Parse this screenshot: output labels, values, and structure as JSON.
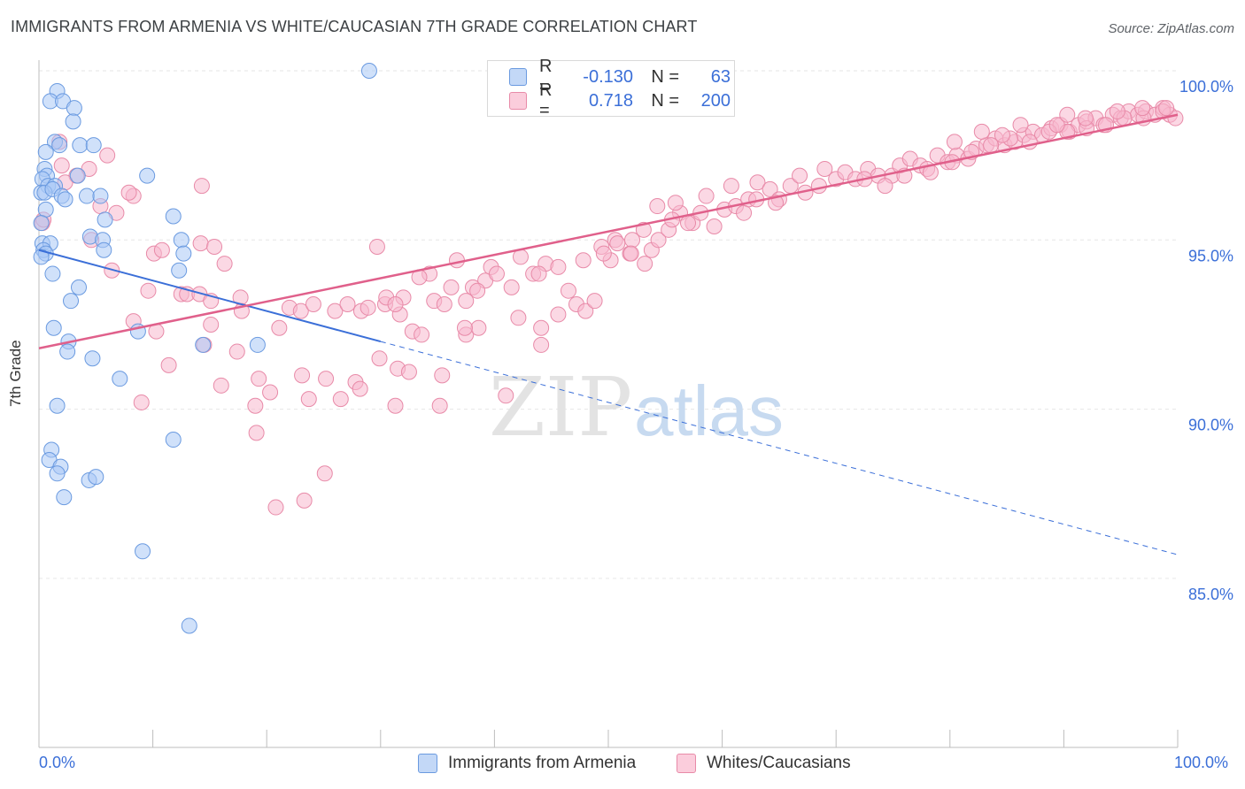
{
  "title": "IMMIGRANTS FROM ARMENIA VS WHITE/CAUCASIAN 7TH GRADE CORRELATION CHART",
  "source": "Source: ZipAtlas.com",
  "watermark": {
    "zip": "ZIP",
    "atlas": "atlas"
  },
  "legend": {
    "rows": [
      {
        "r_label": "R =",
        "r_value": "-0.130",
        "n_label": "N =",
        "n_value": "63",
        "color": "#a9c8f5"
      },
      {
        "r_label": "R =",
        "r_value": "0.718",
        "n_label": "N =",
        "n_value": "200",
        "color": "#f8b8cd"
      }
    ]
  },
  "chart_data": {
    "type": "scatter",
    "title": "IMMIGRANTS FROM ARMENIA VS WHITE/CAUCASIAN 7TH GRADE CORRELATION CHART",
    "ylabel": "7th Grade",
    "xlabel": "",
    "x_tick_labels": [
      "0.0%",
      "100.0%"
    ],
    "y_tick_labels": [
      "100.0%",
      "95.0%",
      "90.0%",
      "85.0%"
    ],
    "y_ticks": [
      100,
      95,
      90,
      85
    ],
    "xlim": [
      0,
      100
    ],
    "ylim": [
      80.5,
      100.8
    ],
    "grid": true,
    "legend_position": "top-center",
    "series": [
      {
        "name": "Immigrants from Armenia",
        "color": "#a9c8f5",
        "stroke": "#6a9ae0",
        "trend": {
          "x0": 0,
          "y0": 94.7,
          "x1": 30,
          "y1": 92.0,
          "dashed_to_x": 100,
          "dashed_to_y": 85.7,
          "color": "#3b6fd8"
        },
        "points": [
          [
            29.0,
            100.0
          ],
          [
            1.6,
            99.4
          ],
          [
            1.0,
            99.1
          ],
          [
            2.1,
            99.1
          ],
          [
            3.1,
            98.9
          ],
          [
            3.0,
            98.5
          ],
          [
            1.4,
            97.9
          ],
          [
            1.8,
            97.8
          ],
          [
            3.6,
            97.8
          ],
          [
            4.8,
            97.8
          ],
          [
            0.6,
            97.6
          ],
          [
            0.5,
            97.1
          ],
          [
            0.7,
            96.9
          ],
          [
            3.4,
            96.9
          ],
          [
            0.3,
            96.8
          ],
          [
            0.8,
            96.6
          ],
          [
            1.4,
            96.6
          ],
          [
            0.2,
            96.4
          ],
          [
            0.5,
            96.4
          ],
          [
            1.2,
            96.5
          ],
          [
            2.0,
            96.3
          ],
          [
            2.3,
            96.2
          ],
          [
            4.2,
            96.3
          ],
          [
            5.4,
            96.3
          ],
          [
            0.6,
            95.9
          ],
          [
            9.5,
            96.9
          ],
          [
            11.8,
            95.7
          ],
          [
            5.8,
            95.6
          ],
          [
            0.2,
            95.5
          ],
          [
            4.5,
            95.1
          ],
          [
            5.6,
            95.0
          ],
          [
            12.5,
            95.0
          ],
          [
            0.3,
            94.9
          ],
          [
            1.0,
            94.9
          ],
          [
            0.4,
            94.7
          ],
          [
            0.6,
            94.6
          ],
          [
            0.2,
            94.5
          ],
          [
            5.7,
            94.7
          ],
          [
            12.7,
            94.6
          ],
          [
            1.2,
            94.0
          ],
          [
            12.3,
            94.1
          ],
          [
            3.5,
            93.6
          ],
          [
            2.8,
            93.2
          ],
          [
            1.3,
            92.4
          ],
          [
            8.7,
            92.3
          ],
          [
            2.6,
            92.0
          ],
          [
            14.4,
            91.9
          ],
          [
            19.2,
            91.9
          ],
          [
            2.5,
            91.7
          ],
          [
            4.7,
            91.5
          ],
          [
            7.1,
            90.9
          ],
          [
            1.6,
            90.1
          ],
          [
            11.8,
            89.1
          ],
          [
            1.1,
            88.8
          ],
          [
            0.9,
            88.5
          ],
          [
            1.9,
            88.3
          ],
          [
            1.6,
            88.1
          ],
          [
            4.4,
            87.9
          ],
          [
            5.0,
            88.0
          ],
          [
            2.2,
            87.4
          ],
          [
            9.1,
            85.8
          ],
          [
            13.2,
            83.6
          ]
        ]
      },
      {
        "name": "Whites/Caucasians",
        "color": "#f8b8cd",
        "stroke": "#e88aa8",
        "trend": {
          "x0": 0,
          "y0": 91.8,
          "x1": 100,
          "y1": 98.7,
          "color": "#e0608b"
        },
        "points": [
          [
            1.8,
            97.9
          ],
          [
            2.0,
            97.2
          ],
          [
            6.0,
            97.5
          ],
          [
            4.4,
            97.1
          ],
          [
            3.3,
            96.9
          ],
          [
            2.3,
            96.7
          ],
          [
            8.3,
            96.3
          ],
          [
            7.9,
            96.4
          ],
          [
            14.3,
            96.6
          ],
          [
            5.4,
            96.0
          ],
          [
            6.8,
            95.8
          ],
          [
            0.3,
            95.5
          ],
          [
            0.4,
            95.6
          ],
          [
            4.6,
            95.0
          ],
          [
            10.1,
            94.6
          ],
          [
            10.8,
            94.7
          ],
          [
            14.2,
            94.9
          ],
          [
            15.4,
            94.8
          ],
          [
            16.3,
            94.3
          ],
          [
            6.4,
            94.1
          ],
          [
            9.6,
            93.5
          ],
          [
            12.5,
            93.4
          ],
          [
            13.0,
            93.4
          ],
          [
            14.1,
            93.4
          ],
          [
            15.1,
            93.2
          ],
          [
            17.7,
            93.3
          ],
          [
            15.1,
            92.5
          ],
          [
            8.3,
            92.6
          ],
          [
            10.3,
            92.3
          ],
          [
            17.8,
            92.9
          ],
          [
            14.5,
            91.9
          ],
          [
            17.4,
            91.7
          ],
          [
            11.4,
            91.3
          ],
          [
            16.0,
            90.7
          ],
          [
            19.3,
            90.9
          ],
          [
            20.3,
            90.5
          ],
          [
            19.0,
            90.1
          ],
          [
            9.0,
            90.2
          ],
          [
            19.1,
            89.3
          ],
          [
            21.1,
            92.4
          ],
          [
            22.0,
            93.0
          ],
          [
            23.0,
            92.9
          ],
          [
            24.1,
            93.1
          ],
          [
            26.0,
            92.9
          ],
          [
            27.1,
            93.1
          ],
          [
            28.3,
            92.9
          ],
          [
            28.9,
            93.0
          ],
          [
            30.4,
            93.1
          ],
          [
            30.5,
            93.3
          ],
          [
            31.7,
            92.8
          ],
          [
            32.0,
            93.3
          ],
          [
            31.3,
            93.1
          ],
          [
            23.1,
            91.0
          ],
          [
            25.2,
            90.9
          ],
          [
            26.5,
            90.3
          ],
          [
            23.7,
            90.3
          ],
          [
            27.8,
            90.8
          ],
          [
            28.2,
            90.6
          ],
          [
            20.8,
            87.1
          ],
          [
            23.3,
            87.3
          ],
          [
            25.1,
            88.1
          ],
          [
            29.9,
            91.5
          ],
          [
            31.5,
            91.2
          ],
          [
            32.8,
            92.3
          ],
          [
            33.6,
            92.2
          ],
          [
            32.5,
            91.1
          ],
          [
            35.4,
            91.0
          ],
          [
            31.3,
            90.1
          ],
          [
            35.2,
            90.1
          ],
          [
            37.5,
            92.2
          ],
          [
            38.6,
            92.4
          ],
          [
            37.5,
            93.2
          ],
          [
            38.1,
            93.6
          ],
          [
            39.2,
            93.8
          ],
          [
            39.7,
            94.2
          ],
          [
            40.2,
            94.0
          ],
          [
            42.3,
            94.5
          ],
          [
            41.5,
            93.6
          ],
          [
            43.4,
            94.0
          ],
          [
            44.5,
            94.3
          ],
          [
            43.9,
            94.0
          ],
          [
            45.6,
            94.2
          ],
          [
            46.5,
            93.5
          ],
          [
            47.2,
            93.1
          ],
          [
            48.0,
            92.9
          ],
          [
            48.8,
            93.2
          ],
          [
            45.6,
            92.8
          ],
          [
            44.1,
            92.4
          ],
          [
            42.1,
            92.7
          ],
          [
            44.1,
            91.9
          ],
          [
            41.0,
            90.4
          ],
          [
            29.7,
            94.8
          ],
          [
            47.8,
            94.4
          ],
          [
            49.4,
            94.8
          ],
          [
            50.6,
            95.0
          ],
          [
            50.2,
            94.4
          ],
          [
            51.9,
            94.6
          ],
          [
            52.1,
            95.0
          ],
          [
            53.2,
            94.3
          ],
          [
            53.8,
            94.7
          ],
          [
            54.4,
            95.0
          ],
          [
            55.3,
            95.3
          ],
          [
            56.3,
            95.8
          ],
          [
            55.9,
            96.1
          ],
          [
            57.4,
            95.5
          ],
          [
            58.1,
            95.8
          ],
          [
            59.3,
            95.4
          ],
          [
            60.2,
            95.9
          ],
          [
            61.2,
            96.0
          ],
          [
            62.3,
            96.2
          ],
          [
            61.9,
            95.8
          ],
          [
            63.1,
            96.7
          ],
          [
            64.2,
            96.5
          ],
          [
            65.0,
            96.2
          ],
          [
            66.0,
            96.6
          ],
          [
            67.3,
            96.4
          ],
          [
            68.5,
            96.6
          ],
          [
            69.0,
            97.1
          ],
          [
            70.0,
            96.8
          ],
          [
            70.8,
            97.0
          ],
          [
            71.7,
            96.8
          ],
          [
            72.8,
            97.1
          ],
          [
            73.7,
            96.9
          ],
          [
            74.9,
            96.9
          ],
          [
            75.6,
            97.2
          ],
          [
            76.5,
            97.4
          ],
          [
            77.4,
            97.2
          ],
          [
            78.0,
            97.1
          ],
          [
            78.9,
            97.5
          ],
          [
            79.8,
            97.3
          ],
          [
            80.6,
            97.5
          ],
          [
            81.6,
            97.4
          ],
          [
            82.3,
            97.7
          ],
          [
            83.2,
            97.8
          ],
          [
            84.0,
            98.0
          ],
          [
            84.8,
            97.8
          ],
          [
            85.7,
            97.9
          ],
          [
            86.5,
            98.1
          ],
          [
            87.3,
            98.2
          ],
          [
            88.1,
            98.1
          ],
          [
            88.9,
            98.3
          ],
          [
            89.7,
            98.4
          ],
          [
            90.5,
            98.2
          ],
          [
            91.3,
            98.4
          ],
          [
            92.0,
            98.5
          ],
          [
            92.8,
            98.6
          ],
          [
            93.5,
            98.4
          ],
          [
            94.3,
            98.7
          ],
          [
            95.0,
            98.6
          ],
          [
            95.7,
            98.8
          ],
          [
            96.5,
            98.7
          ],
          [
            97.2,
            98.8
          ],
          [
            98.0,
            98.7
          ],
          [
            98.7,
            98.9
          ],
          [
            99.3,
            98.7
          ],
          [
            99.8,
            98.6
          ],
          [
            72.5,
            96.8
          ],
          [
            74.3,
            96.6
          ],
          [
            76.0,
            96.9
          ],
          [
            78.3,
            97.0
          ],
          [
            80.2,
            97.3
          ],
          [
            81.9,
            97.6
          ],
          [
            83.6,
            97.8
          ],
          [
            85.3,
            98.0
          ],
          [
            87.0,
            97.9
          ],
          [
            88.7,
            98.2
          ],
          [
            90.3,
            98.2
          ],
          [
            92.0,
            98.3
          ],
          [
            93.7,
            98.4
          ],
          [
            95.3,
            98.6
          ],
          [
            97.0,
            98.6
          ],
          [
            98.7,
            98.8
          ],
          [
            66.8,
            96.9
          ],
          [
            64.7,
            96.1
          ],
          [
            63.0,
            96.2
          ],
          [
            60.8,
            96.6
          ],
          [
            58.6,
            96.3
          ],
          [
            57.0,
            95.5
          ],
          [
            55.6,
            95.6
          ],
          [
            54.3,
            96.0
          ],
          [
            53.1,
            95.3
          ],
          [
            52.0,
            94.6
          ],
          [
            50.8,
            94.9
          ],
          [
            49.6,
            94.6
          ],
          [
            37.4,
            92.4
          ],
          [
            38.5,
            93.5
          ],
          [
            34.3,
            94.0
          ],
          [
            34.7,
            93.2
          ],
          [
            36.2,
            93.6
          ],
          [
            35.6,
            93.1
          ],
          [
            33.4,
            93.9
          ],
          [
            36.7,
            94.4
          ],
          [
            80.4,
            97.9
          ],
          [
            82.8,
            98.2
          ],
          [
            86.2,
            98.4
          ],
          [
            89.4,
            98.4
          ],
          [
            91.9,
            98.6
          ],
          [
            94.7,
            98.8
          ],
          [
            96.9,
            98.9
          ],
          [
            99.0,
            98.9
          ],
          [
            90.3,
            98.7
          ],
          [
            84.6,
            98.1
          ]
        ]
      }
    ]
  },
  "bottom_legend": [
    {
      "label": "Immigrants from Armenia",
      "color": "#a9c8f5"
    },
    {
      "label": "Whites/Caucasians",
      "color": "#f8b8cd"
    }
  ]
}
